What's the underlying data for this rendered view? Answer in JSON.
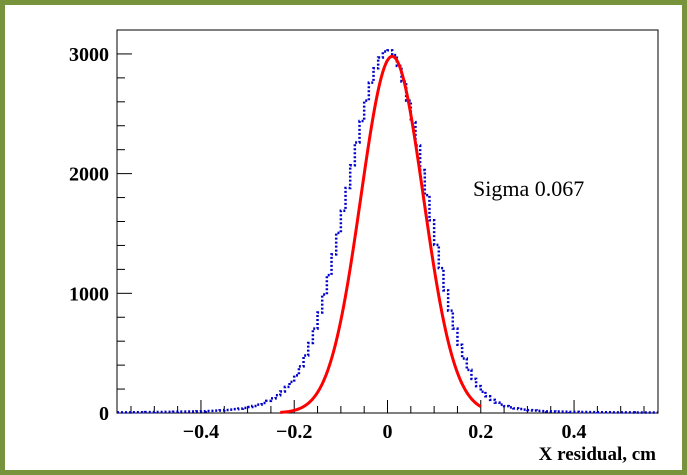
{
  "chart_data": {
    "type": "line",
    "title": "",
    "xlabel": "X residual, cm",
    "ylabel": "",
    "xlim": [
      -0.58,
      0.58
    ],
    "ylim": [
      0,
      3200
    ],
    "x_ticks": [
      "−0.4",
      "−0.2",
      "0",
      "0.2",
      "0.4"
    ],
    "x_tick_values": [
      -0.4,
      -0.2,
      0,
      0.2,
      0.4
    ],
    "y_ticks": [
      "0",
      "1000",
      "2000",
      "3000"
    ],
    "y_tick_values": [
      0,
      1000,
      2000,
      3000
    ],
    "annotation": "Sigma 0.067",
    "series": [
      {
        "type": "histogram",
        "style": "dotted-step",
        "color": "#0000cc",
        "bin_width": 0.01,
        "x": [
          -0.575,
          -0.565,
          -0.555,
          -0.545,
          -0.535,
          -0.525,
          -0.515,
          -0.505,
          -0.495,
          -0.485,
          -0.475,
          -0.465,
          -0.455,
          -0.445,
          -0.435,
          -0.425,
          -0.415,
          -0.405,
          -0.395,
          -0.385,
          -0.375,
          -0.365,
          -0.355,
          -0.345,
          -0.335,
          -0.325,
          -0.315,
          -0.305,
          -0.295,
          -0.285,
          -0.275,
          -0.265,
          -0.255,
          -0.245,
          -0.235,
          -0.225,
          -0.215,
          -0.205,
          -0.195,
          -0.185,
          -0.175,
          -0.165,
          -0.155,
          -0.145,
          -0.135,
          -0.125,
          -0.115,
          -0.105,
          -0.095,
          -0.085,
          -0.075,
          -0.065,
          -0.055,
          -0.045,
          -0.035,
          -0.025,
          -0.015,
          -0.005,
          0.005,
          0.015,
          0.025,
          0.035,
          0.045,
          0.055,
          0.065,
          0.075,
          0.085,
          0.095,
          0.105,
          0.115,
          0.125,
          0.135,
          0.145,
          0.155,
          0.165,
          0.175,
          0.185,
          0.195,
          0.205,
          0.215,
          0.225,
          0.235,
          0.245,
          0.255,
          0.265,
          0.275,
          0.285,
          0.295,
          0.305,
          0.315,
          0.325,
          0.335,
          0.345,
          0.355,
          0.365,
          0.375,
          0.385,
          0.395,
          0.405,
          0.415,
          0.425,
          0.435,
          0.445,
          0.455,
          0.465,
          0.475,
          0.485,
          0.495,
          0.505,
          0.515,
          0.525,
          0.535,
          0.545,
          0.555,
          0.565,
          0.575
        ],
        "values": [
          5,
          5,
          5,
          6,
          6,
          6,
          7,
          7,
          8,
          8,
          9,
          9,
          10,
          11,
          11,
          12,
          13,
          14,
          15,
          17,
          18,
          20,
          22,
          25,
          28,
          32,
          37,
          43,
          50,
          59,
          70,
          84,
          101,
          122,
          148,
          180,
          218,
          260,
          314,
          390,
          480,
          585,
          705,
          840,
          990,
          1152,
          1325,
          1505,
          1690,
          1880,
          2070,
          2260,
          2440,
          2610,
          2760,
          2880,
          2970,
          3020,
          3030,
          2990,
          2900,
          2770,
          2610,
          2430,
          2235,
          2030,
          1820,
          1610,
          1405,
          1210,
          1025,
          855,
          705,
          570,
          455,
          360,
          285,
          225,
          178,
          140,
          110,
          87,
          70,
          57,
          47,
          39,
          33,
          28,
          24,
          21,
          18,
          16,
          14,
          13,
          12,
          11,
          10,
          9,
          9,
          8,
          8,
          7,
          7,
          6,
          6,
          6,
          5,
          5,
          5,
          5,
          5,
          4,
          4,
          4,
          4,
          4
        ]
      },
      {
        "type": "gaussian-fit",
        "color": "#ff0000",
        "amplitude": 2980,
        "mean": 0.01,
        "sigma": 0.067,
        "x_range": [
          -0.23,
          0.2
        ]
      }
    ]
  }
}
